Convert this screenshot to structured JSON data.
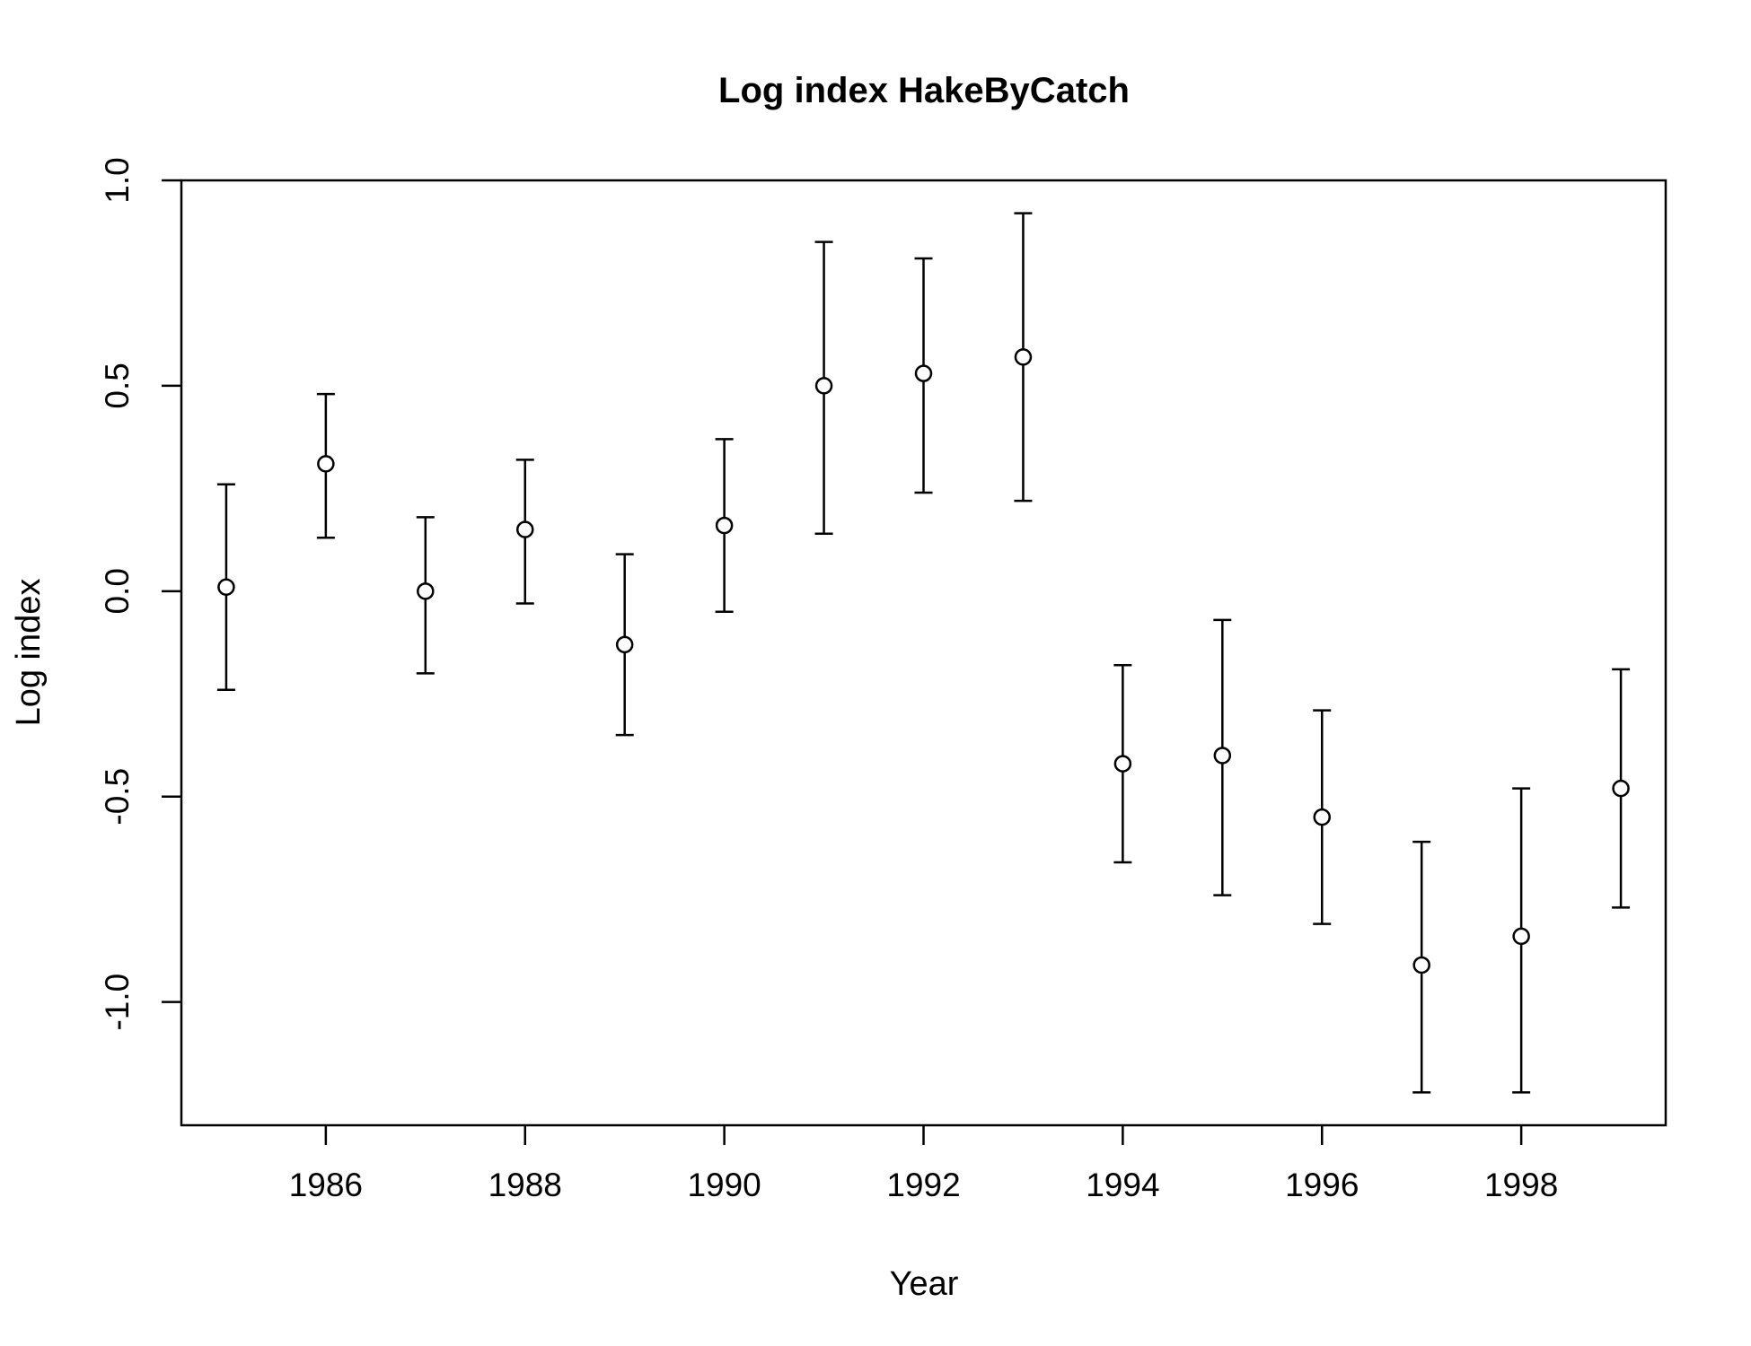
{
  "chart_data": {
    "type": "scatter",
    "title": "Log index HakeByCatch",
    "xlabel": "Year",
    "ylabel": "Log index",
    "xlim": [
      1984.55,
      1999.45
    ],
    "ylim": [
      -1.3,
      1.0
    ],
    "x_ticks": [
      1986,
      1988,
      1990,
      1992,
      1994,
      1996,
      1998
    ],
    "y_ticks": [
      -1.0,
      -0.5,
      0.0,
      0.5,
      1.0
    ],
    "x_tick_labels": [
      "1986",
      "1988",
      "1990",
      "1992",
      "1994",
      "1996",
      "1998"
    ],
    "y_tick_labels": [
      "-1.0",
      "-0.5",
      "0.0",
      "0.5",
      "1.0"
    ],
    "grid": false,
    "series": [
      {
        "points": [
          {
            "x": 1985,
            "y": 0.01,
            "lower": -0.24,
            "upper": 0.26
          },
          {
            "x": 1986,
            "y": 0.31,
            "lower": 0.13,
            "upper": 0.48
          },
          {
            "x": 1987,
            "y": 0.0,
            "lower": -0.2,
            "upper": 0.18
          },
          {
            "x": 1988,
            "y": 0.15,
            "lower": -0.03,
            "upper": 0.32
          },
          {
            "x": 1989,
            "y": -0.13,
            "lower": -0.35,
            "upper": 0.09
          },
          {
            "x": 1990,
            "y": 0.16,
            "lower": -0.05,
            "upper": 0.37
          },
          {
            "x": 1991,
            "y": 0.5,
            "lower": 0.14,
            "upper": 0.85
          },
          {
            "x": 1992,
            "y": 0.53,
            "lower": 0.24,
            "upper": 0.81
          },
          {
            "x": 1993,
            "y": 0.57,
            "lower": 0.22,
            "upper": 0.92
          },
          {
            "x": 1994,
            "y": -0.42,
            "lower": -0.66,
            "upper": -0.18
          },
          {
            "x": 1995,
            "y": -0.4,
            "lower": -0.74,
            "upper": -0.07
          },
          {
            "x": 1996,
            "y": -0.55,
            "lower": -0.81,
            "upper": -0.29
          },
          {
            "x": 1997,
            "y": -0.91,
            "lower": -1.22,
            "upper": -0.61
          },
          {
            "x": 1998,
            "y": -0.84,
            "lower": -1.22,
            "upper": -0.48
          },
          {
            "x": 1999,
            "y": -0.48,
            "lower": -0.77,
            "upper": -0.19
          }
        ]
      }
    ]
  }
}
